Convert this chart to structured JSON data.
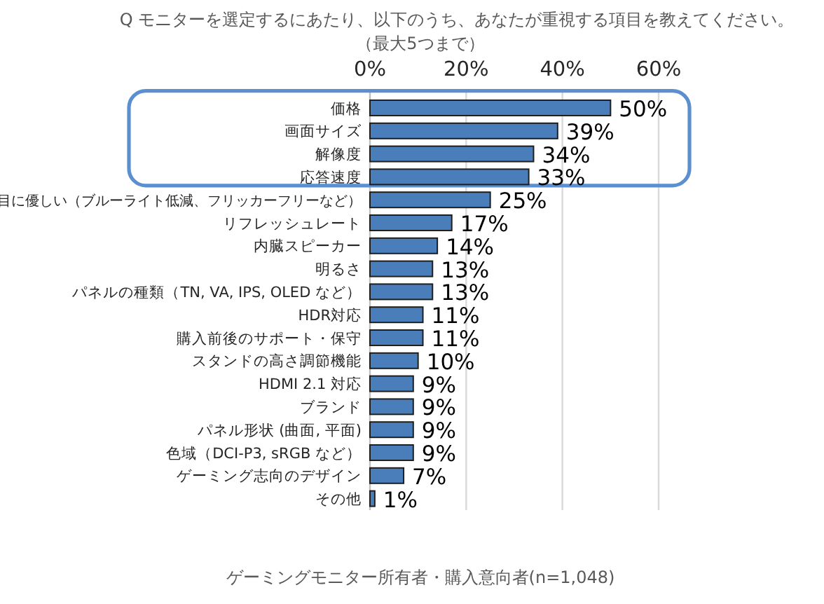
{
  "chart_data": {
    "type": "bar",
    "orientation": "horizontal",
    "title": "Q モニターを選定するにあたり、以下のうち、あなたが重視する項目を教えてください。",
    "subtitle": "（最大5つまで）",
    "categories": [
      "価格",
      "画面サイズ",
      "解像度",
      "応答速度",
      "目に優しい（ブルーライト低減、フリッカーフリーなど）",
      "リフレッシュレート",
      "内臓スピーカー",
      "明るさ",
      "パネルの種類（TN, VA, IPS, OLED など）",
      "HDR対応",
      "購入前後のサポート・保守",
      "スタンドの高さ調節機能",
      "HDMI 2.1 対応",
      "ブランド",
      "パネル形状 (曲面, 平面)",
      "色域（DCI-P3, sRGB など）",
      "ゲーミング志向のデザイン",
      "その他"
    ],
    "values": [
      50,
      39,
      34,
      33,
      25,
      17,
      14,
      13,
      13,
      11,
      11,
      10,
      9,
      9,
      9,
      9,
      7,
      1
    ],
    "value_labels": [
      "50%",
      "39%",
      "34%",
      "33%",
      "25%",
      "17%",
      "14%",
      "13%",
      "13%",
      "11%",
      "11%",
      "10%",
      "9%",
      "9%",
      "9%",
      "9%",
      "7%",
      "1%"
    ],
    "color": "#4a7ebb",
    "xlim": [
      0,
      60
    ],
    "xticks": [
      {
        "value": 0,
        "label": "0%"
      },
      {
        "value": 20,
        "label": "20%"
      },
      {
        "value": 40,
        "label": "40%"
      },
      {
        "value": 60,
        "label": "60%"
      }
    ],
    "grid": "x",
    "annotations": [
      "ゲーミングモニター所有者・購入意向者(n=1,048)"
    ]
  }
}
